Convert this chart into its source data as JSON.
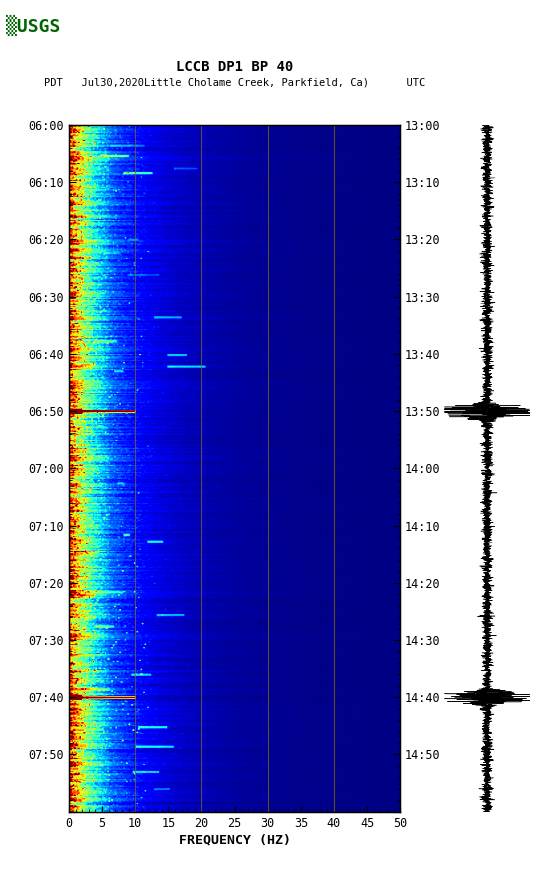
{
  "title_line1": "LCCB DP1 BP 40",
  "title_line2": "PDT   Jul30,2020Little Cholame Creek, Parkfield, Ca)      UTC",
  "left_times": [
    "06:00",
    "06:10",
    "06:20",
    "06:30",
    "06:40",
    "06:50",
    "07:00",
    "07:10",
    "07:20",
    "07:30",
    "07:40",
    "07:50"
  ],
  "right_times": [
    "13:00",
    "13:10",
    "13:20",
    "13:30",
    "13:40",
    "13:50",
    "14:00",
    "14:10",
    "14:20",
    "14:30",
    "14:40",
    "14:50"
  ],
  "freq_min": 0,
  "freq_max": 50,
  "freq_ticks": [
    0,
    5,
    10,
    15,
    20,
    25,
    30,
    35,
    40,
    45,
    50
  ],
  "xlabel": "FREQUENCY (HZ)",
  "time_min": 0,
  "time_max": 120,
  "bg_color": "#ffffff",
  "vertical_lines_freq": [
    10,
    20,
    30,
    40
  ],
  "colormap": "jet",
  "dark_band_times_min": [
    50,
    100
  ],
  "figsize": [
    5.52,
    8.92
  ],
  "dpi": 100,
  "usgs_color": "#006400",
  "vline_color": "#8B6914"
}
